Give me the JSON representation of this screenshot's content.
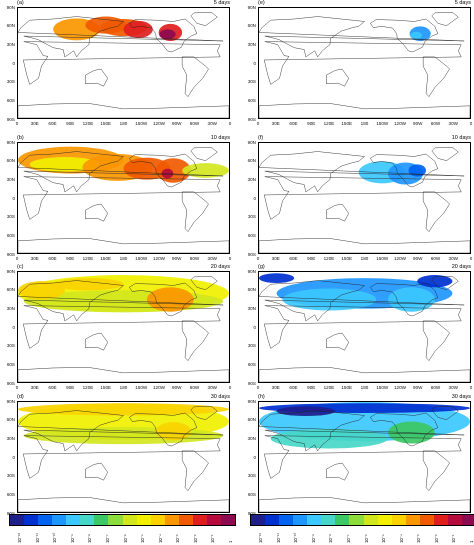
{
  "panels": [
    {
      "label": "(a)",
      "days": "5 days"
    },
    {
      "label": "(e)",
      "days": "5 days"
    },
    {
      "label": "(b)",
      "days": "10 days"
    },
    {
      "label": "(f)",
      "days": "10 days"
    },
    {
      "label": "(c)",
      "days": "20 days"
    },
    {
      "label": "(g)",
      "days": "20 days"
    },
    {
      "label": "(d)",
      "days": "30 days"
    },
    {
      "label": "(h)",
      "days": "30 days"
    }
  ],
  "lat_ticks": [
    "90N",
    "60N",
    "30N",
    "0",
    "30S",
    "60S",
    "90S"
  ],
  "lon_ticks": [
    "0",
    "30E",
    "60E",
    "90E",
    "120E",
    "150E",
    "180",
    "150W",
    "120W",
    "90W",
    "60W",
    "30W",
    "0"
  ],
  "colorbar": {
    "colors": [
      "#1e1e8c",
      "#0030d0",
      "#0064f0",
      "#1e96ff",
      "#3cc8ff",
      "#46d7c8",
      "#3cc864",
      "#8cdc3c",
      "#d2e61e",
      "#f0f000",
      "#fad200",
      "#fa9600",
      "#f05a00",
      "#e01e1e",
      "#b40a3c",
      "#8c0a50"
    ],
    "labels": [
      "10⁻¹²",
      "10⁻¹¹",
      "10⁻¹⁰",
      "10⁻⁹",
      "10⁻⁸",
      "10⁻⁷",
      "10⁻⁶",
      "10⁻⁵",
      "10⁻⁴",
      "10⁻³",
      "10⁻²",
      "10⁻¹",
      "1"
    ]
  }
}
